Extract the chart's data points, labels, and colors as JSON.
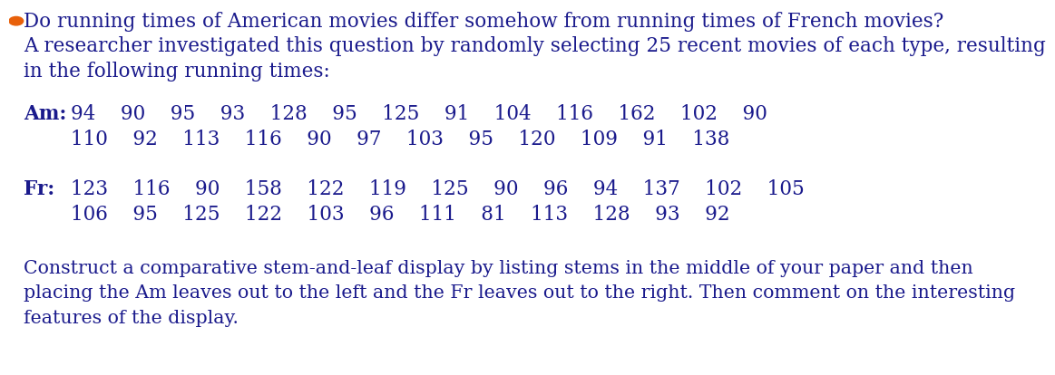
{
  "bg_color": "#ffffff",
  "bullet_color": "#e8600a",
  "text_color": "#1a1a8c",
  "bold_color": "#1a1a8c",
  "paragraph1": "Do running times of American movies differ somehow from running times of French movies?",
  "paragraph2": "A researcher investigated this question by randomly selecting 25 recent movies of each type, resulting",
  "paragraph3": "in the following running times:",
  "am_label": "Am:",
  "am_row1": "94    90    95    93    128    95    125    91    104    116    162    102    90",
  "am_row2": "110    92    113    116    90    97    103    95    120    109    91    138",
  "fr_label": "Fr:",
  "fr_row1": "123    116    90    158    122    119    125    90    96    94    137    102    105",
  "fr_row2": "106    95    125    122    103    96    111    81    113    128    93    92",
  "footer1": "Construct a comparative stem-and-leaf display by listing stems in the middle of your paper and then",
  "footer2": "placing the Am leaves out to the left and the Fr leaves out to the right. Then comment on the interesting",
  "footer3": "features of the display.",
  "font_size_main": 15.5,
  "font_size_data": 15.5,
  "font_size_footer": 14.8
}
